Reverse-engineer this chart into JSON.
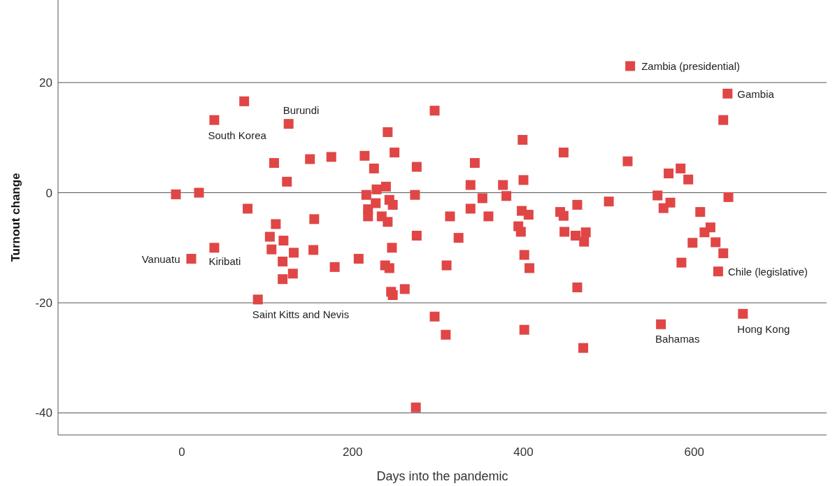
{
  "chart_data": {
    "type": "scatter",
    "xlabel": "Days into the pandemic",
    "ylabel": "Turnout change",
    "xlim": [
      -145,
      755
    ],
    "ylim": [
      -44,
      35
    ],
    "xticks": [
      0,
      200,
      400,
      600
    ],
    "yticks": [
      20,
      0,
      -20,
      -40
    ],
    "grid": "y",
    "marker": "square",
    "color": "#e04646",
    "x": [
      -7,
      20,
      38,
      73,
      125,
      77,
      11,
      38,
      108,
      123,
      110,
      103,
      105,
      119,
      118,
      131,
      118,
      130,
      89,
      150,
      155,
      154,
      175,
      179,
      207,
      214,
      225,
      216,
      228,
      218,
      218,
      227,
      241,
      249,
      275,
      296,
      239,
      243,
      247,
      234,
      241,
      273,
      275,
      246,
      343,
      338,
      376,
      352,
      380,
      338,
      314,
      359,
      324,
      399,
      400,
      398,
      406,
      394,
      397,
      447,
      443,
      447,
      463,
      448,
      461,
      473,
      471,
      238,
      243,
      245,
      247,
      261,
      310,
      296,
      309,
      274,
      401,
      407,
      401,
      463,
      470,
      525,
      639,
      634,
      522,
      570,
      584,
      593,
      557,
      572,
      564,
      640,
      500,
      607,
      619,
      612,
      625,
      598,
      634,
      585,
      628,
      561,
      657
    ],
    "values": [
      -0.3,
      0,
      13.2,
      16.6,
      12.5,
      -2.9,
      -12,
      -10,
      5.4,
      2,
      -5.7,
      -8,
      -10.3,
      -8.7,
      -12.5,
      -10.9,
      -15.7,
      -14.7,
      -19.4,
      6.1,
      -4.8,
      -10.4,
      6.5,
      -13.5,
      -12,
      6.7,
      4.4,
      -0.4,
      0.6,
      -3,
      -4.3,
      -1.9,
      11,
      7.3,
      4.7,
      14.9,
      1.1,
      -1.3,
      -2.2,
      -4.3,
      -5.3,
      -0.4,
      -7.8,
      -10,
      5.4,
      1.4,
      1.4,
      -1,
      -0.6,
      -2.9,
      -4.3,
      -4.3,
      -8.2,
      9.6,
      2.3,
      -3.3,
      -4,
      -6.1,
      -7.1,
      7.3,
      -3.5,
      -4.2,
      -2.2,
      -7.1,
      -7.8,
      -7.2,
      -8.9,
      -13.2,
      -13.7,
      -18,
      -18.6,
      -17.5,
      -13.2,
      -22.5,
      -25.8,
      -39,
      -11.3,
      -13.7,
      -24.9,
      -17.2,
      -28.2,
      23,
      18,
      13.2,
      5.7,
      3.5,
      4.4,
      2.4,
      -0.5,
      -1.8,
      -2.8,
      -0.8,
      -1.6,
      -3.5,
      -6.3,
      -7.2,
      -9,
      -9.1,
      -11,
      -12.7,
      -14.3,
      -23.9,
      -22
    ],
    "annotations": [
      {
        "text": "South Korea",
        "x": 38,
        "y": 13.2
      },
      {
        "text": "Burundi",
        "x": 125,
        "y": 12.5
      },
      {
        "text": "Vanuatu",
        "x": 11,
        "y": -12
      },
      {
        "text": "Kiribati",
        "x": 38,
        "y": -10
      },
      {
        "text": "Saint Kitts and Nevis",
        "x": 89,
        "y": -19.4
      },
      {
        "text": "Zambia (presidential)",
        "x": 525,
        "y": 23
      },
      {
        "text": "Gambia",
        "x": 639,
        "y": 18
      },
      {
        "text": "Chile (legislative)",
        "x": 628,
        "y": -14.3
      },
      {
        "text": "Bahamas",
        "x": 561,
        "y": -23.9
      },
      {
        "text": "Hong Kong",
        "x": 657,
        "y": -22
      }
    ]
  }
}
